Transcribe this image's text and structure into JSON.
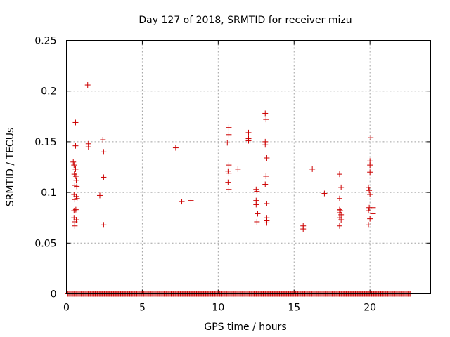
{
  "chart_data": {
    "type": "scatter",
    "title": "Day 127 of 2018, SRMTID for receiver mizu",
    "xlabel": "GPS time / hours",
    "ylabel": "SRMTID / TECUs",
    "xlim": [
      0,
      24
    ],
    "ylim": [
      0,
      0.25
    ],
    "xticks": [
      0,
      5,
      10,
      15,
      20
    ],
    "xtick_labels": [
      "0",
      "5",
      "10",
      "15",
      "20"
    ],
    "yticks": [
      0,
      0.05,
      0.1,
      0.15,
      0.2,
      0.25
    ],
    "ytick_labels": [
      "0",
      "0.05",
      "0.1",
      "0.15",
      "0.2",
      "0.25"
    ],
    "grid": true,
    "marker": "+",
    "color": "#cc0000",
    "zero_band": [
      0.1,
      22.7
    ],
    "series": [
      {
        "name": "SRMTID",
        "points": [
          [
            0.45,
            0.13
          ],
          [
            0.5,
            0.127
          ],
          [
            0.52,
            0.118
          ],
          [
            0.55,
            0.107
          ],
          [
            0.5,
            0.098
          ],
          [
            0.55,
            0.093
          ],
          [
            0.5,
            0.082
          ],
          [
            0.5,
            0.075
          ],
          [
            0.55,
            0.071
          ],
          [
            0.55,
            0.067
          ],
          [
            0.6,
            0.169
          ],
          [
            0.6,
            0.146
          ],
          [
            0.6,
            0.123
          ],
          [
            0.62,
            0.116
          ],
          [
            0.65,
            0.112
          ],
          [
            0.68,
            0.106
          ],
          [
            0.65,
            0.096
          ],
          [
            0.7,
            0.094
          ],
          [
            0.62,
            0.083
          ],
          [
            0.65,
            0.073
          ],
          [
            1.4,
            0.206
          ],
          [
            1.45,
            0.148
          ],
          [
            1.45,
            0.145
          ],
          [
            2.2,
            0.097
          ],
          [
            2.4,
            0.152
          ],
          [
            2.45,
            0.14
          ],
          [
            2.45,
            0.115
          ],
          [
            2.45,
            0.068
          ],
          [
            7.2,
            0.144
          ],
          [
            7.6,
            0.091
          ],
          [
            8.2,
            0.092
          ],
          [
            10.6,
            0.149
          ],
          [
            10.7,
            0.164
          ],
          [
            10.7,
            0.157
          ],
          [
            10.7,
            0.127
          ],
          [
            10.65,
            0.121
          ],
          [
            10.7,
            0.119
          ],
          [
            10.65,
            0.11
          ],
          [
            10.7,
            0.103
          ],
          [
            11.3,
            0.123
          ],
          [
            12.0,
            0.159
          ],
          [
            12.0,
            0.153
          ],
          [
            12.0,
            0.151
          ],
          [
            12.5,
            0.103
          ],
          [
            12.55,
            0.101
          ],
          [
            12.5,
            0.092
          ],
          [
            12.5,
            0.088
          ],
          [
            12.6,
            0.079
          ],
          [
            12.55,
            0.071
          ],
          [
            13.1,
            0.178
          ],
          [
            13.15,
            0.172
          ],
          [
            13.1,
            0.15
          ],
          [
            13.1,
            0.147
          ],
          [
            13.2,
            0.134
          ],
          [
            13.15,
            0.116
          ],
          [
            13.1,
            0.108
          ],
          [
            13.2,
            0.089
          ],
          [
            13.2,
            0.075
          ],
          [
            13.2,
            0.072
          ],
          [
            13.2,
            0.07
          ],
          [
            15.6,
            0.067
          ],
          [
            15.6,
            0.064
          ],
          [
            16.2,
            0.123
          ],
          [
            17.0,
            0.099
          ],
          [
            18.0,
            0.118
          ],
          [
            18.1,
            0.105
          ],
          [
            18.0,
            0.094
          ],
          [
            18.0,
            0.083
          ],
          [
            18.05,
            0.082
          ],
          [
            18.0,
            0.08
          ],
          [
            18.1,
            0.078
          ],
          [
            18.0,
            0.075
          ],
          [
            18.1,
            0.073
          ],
          [
            18.0,
            0.067
          ],
          [
            19.9,
            0.105
          ],
          [
            19.95,
            0.102
          ],
          [
            20.0,
            0.098
          ],
          [
            19.95,
            0.085
          ],
          [
            19.9,
            0.082
          ],
          [
            19.9,
            0.068
          ],
          [
            20.0,
            0.074
          ],
          [
            20.05,
            0.154
          ],
          [
            20.0,
            0.131
          ],
          [
            20.0,
            0.127
          ],
          [
            20.0,
            0.12
          ],
          [
            20.2,
            0.085
          ],
          [
            20.2,
            0.079
          ]
        ]
      }
    ]
  }
}
